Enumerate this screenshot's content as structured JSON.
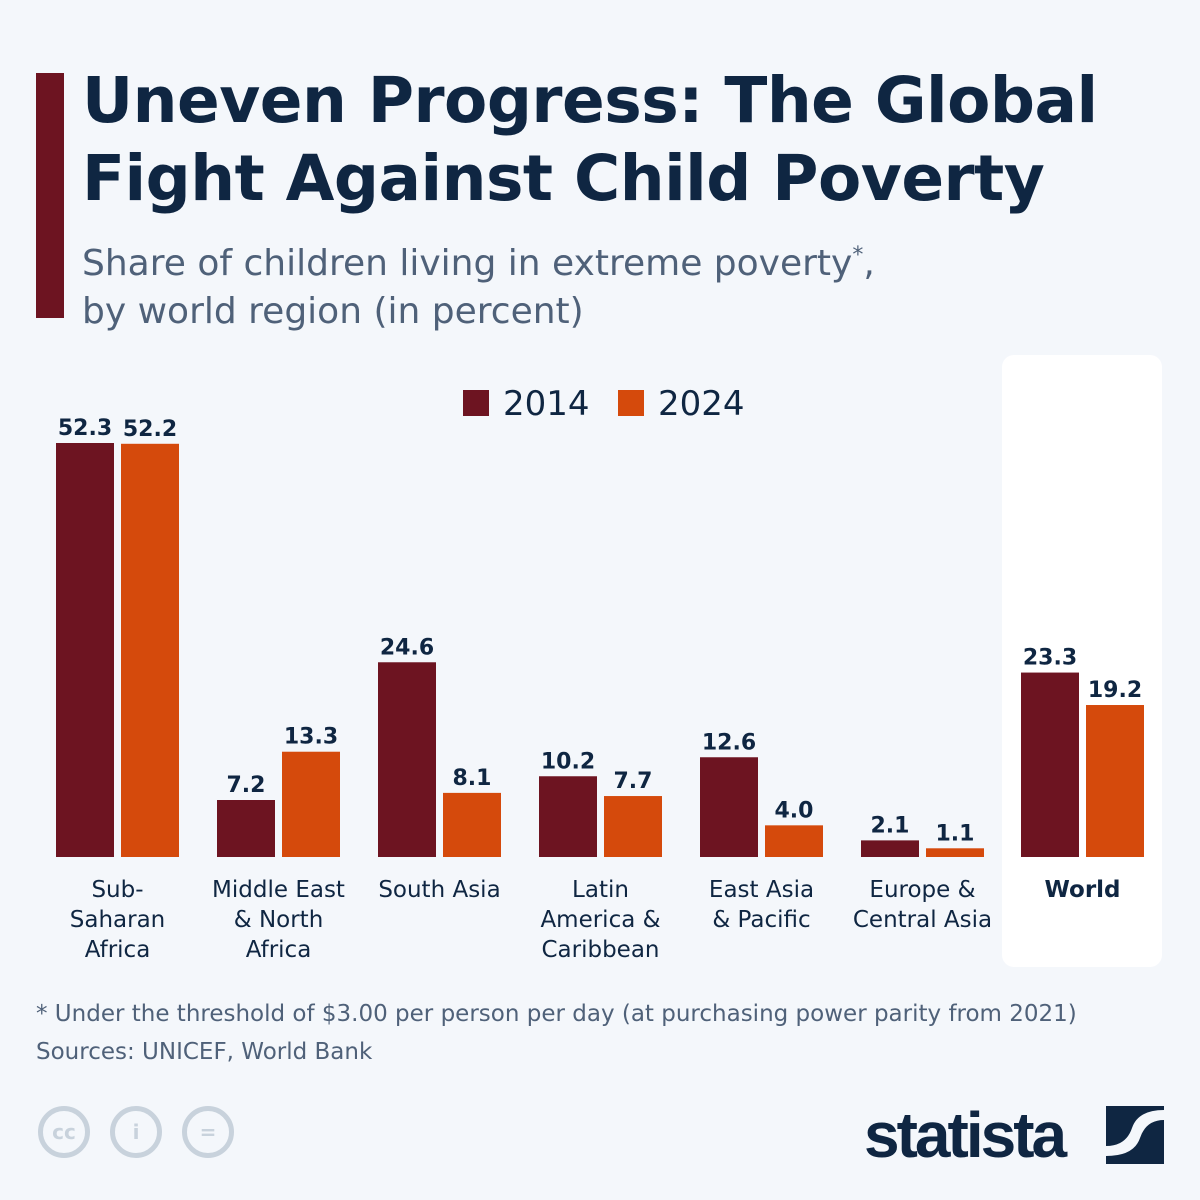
{
  "title_line1": "Uneven Progress: The Global",
  "title_line2": "Fight Against Child Poverty",
  "subtitle_line1": "Share of children living in extreme poverty",
  "subtitle_mark": "*",
  "subtitle_comma": ",",
  "subtitle_line2": "by world region (in percent)",
  "footnote": "* Under the threshold of $3.00 per person per day (at purchasing power parity from 2021)",
  "sources": "Sources: UNICEF, World Bank",
  "logo": "statista",
  "license_icons": [
    "cc-icon",
    "attribution-icon",
    "no-derivatives-icon"
  ],
  "colors": {
    "2014": "#6d1421",
    "2024": "#d54a0c",
    "highlight_panel": "#ffffff"
  },
  "chart_data": {
    "type": "bar",
    "title": "Uneven Progress: The Global Fight Against Child Poverty",
    "subtitle": "Share of children living in extreme poverty*, by world region (in percent)",
    "categories": [
      [
        "Sub-",
        "Saharan",
        "Africa"
      ],
      [
        "Middle East",
        "& North",
        "Africa"
      ],
      [
        "South Asia"
      ],
      [
        "Latin",
        "America &",
        "Caribbean"
      ],
      [
        "East Asia",
        "& Pacific"
      ],
      [
        "Europe &",
        "Central Asia"
      ],
      [
        "World"
      ]
    ],
    "highlighted_category": "World",
    "series": [
      {
        "name": "2014",
        "values": [
          52.3,
          7.2,
          24.6,
          10.2,
          12.6,
          2.1,
          23.3
        ]
      },
      {
        "name": "2024",
        "values": [
          52.2,
          13.3,
          8.1,
          7.7,
          4.0,
          1.1,
          19.2
        ]
      }
    ],
    "ylim": [
      0,
      52.3
    ],
    "grid": false,
    "legend": "top-center",
    "data_labels": true
  }
}
